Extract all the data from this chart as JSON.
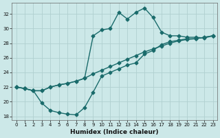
{
  "xlabel": "Humidex (Indice chaleur)",
  "bg_color": "#cce8e8",
  "grid_color": "#b0d0d0",
  "line_color": "#1a6b6b",
  "line1_x": [
    0,
    1,
    2,
    3,
    4,
    5,
    6,
    7,
    8,
    9,
    10,
    11,
    12,
    13,
    14,
    15,
    16,
    17,
    18,
    19,
    20,
    21,
    22,
    23
  ],
  "line1_y": [
    22.0,
    21.8,
    21.5,
    19.8,
    18.8,
    18.5,
    18.3,
    18.2,
    19.2,
    21.3,
    23.5,
    24.0,
    24.5,
    25.0,
    25.3,
    26.5,
    27.0,
    27.8,
    28.2,
    28.4,
    28.6,
    28.6,
    28.8,
    29.0
  ],
  "line2_x": [
    0,
    1,
    2,
    3,
    4,
    5,
    6,
    7,
    8,
    9,
    10,
    11,
    12,
    13,
    14,
    15,
    16,
    17,
    18,
    19,
    20,
    21,
    22,
    23
  ],
  "line2_y": [
    22.0,
    21.8,
    21.5,
    21.5,
    22.0,
    22.3,
    22.5,
    22.8,
    23.2,
    23.8,
    24.3,
    24.8,
    25.3,
    25.8,
    26.3,
    26.8,
    27.2,
    27.6,
    28.0,
    28.3,
    28.5,
    28.6,
    28.8,
    29.0
  ],
  "line3_x": [
    0,
    1,
    2,
    3,
    4,
    5,
    6,
    7,
    8,
    9,
    10,
    11,
    12,
    13,
    14,
    15,
    16,
    17,
    18,
    19,
    20,
    21,
    22,
    23
  ],
  "line3_y": [
    22.0,
    21.8,
    21.5,
    21.5,
    22.0,
    22.3,
    22.5,
    22.8,
    23.2,
    29.0,
    29.8,
    30.0,
    32.2,
    31.3,
    32.2,
    32.8,
    31.5,
    29.5,
    29.0,
    29.0,
    28.8,
    28.8,
    28.7,
    29.0
  ],
  "ylim": [
    17.5,
    33.5
  ],
  "xlim": [
    -0.5,
    23.5
  ],
  "yticks": [
    18,
    20,
    22,
    24,
    26,
    28,
    30,
    32
  ],
  "xticks": [
    0,
    1,
    2,
    3,
    4,
    5,
    6,
    7,
    8,
    9,
    10,
    11,
    12,
    13,
    14,
    15,
    16,
    17,
    18,
    19,
    20,
    21,
    22,
    23
  ],
  "marker": "D",
  "marker_size": 2.5,
  "line_width": 1.0,
  "tick_fontsize": 5.0,
  "xlabel_fontsize": 6.5
}
